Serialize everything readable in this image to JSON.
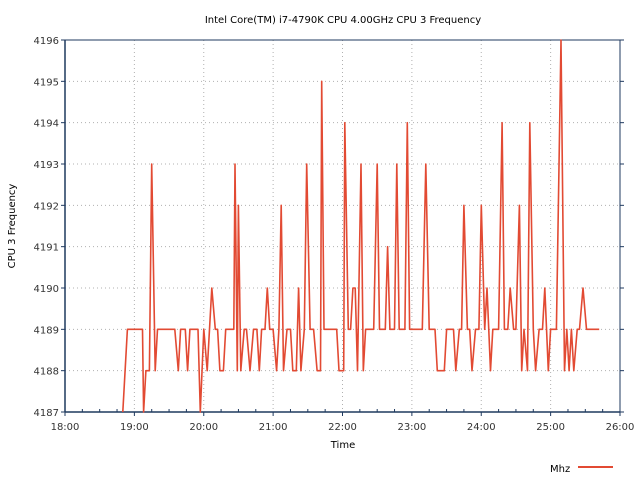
{
  "chart_data": {
    "type": "line",
    "title": "Intel Core(TM) i7-4790K CPU 4.00GHz CPU 3 Frequency",
    "xlabel": "Time",
    "ylabel": "CPU 3 Frequency",
    "xlim": [
      "18:00",
      "26:00"
    ],
    "ylim": [
      4187,
      4196
    ],
    "x_ticks": [
      "18:00",
      "19:00",
      "20:00",
      "21:00",
      "22:00",
      "23:00",
      "24:00",
      "25:00",
      "26:00"
    ],
    "y_ticks": [
      "4187",
      "4188",
      "4189",
      "4190",
      "4191",
      "4192",
      "4193",
      "4194",
      "4195",
      "4196"
    ],
    "grid": true,
    "legend_position": "bottom-right",
    "colors": {
      "series": "#e24a33",
      "axis": "#1f3a5f",
      "grid": "#b0b0b0"
    },
    "series": [
      {
        "name": "Mhz",
        "points": [
          [
            "18:50",
            4187
          ],
          [
            "18:54",
            4189
          ],
          [
            "19:05",
            4189
          ],
          [
            "19:07",
            4189
          ],
          [
            "19:08",
            4187
          ],
          [
            "19:10",
            4188
          ],
          [
            "19:13",
            4188
          ],
          [
            "19:15",
            4193
          ],
          [
            "19:18",
            4188
          ],
          [
            "19:20",
            4189
          ],
          [
            "19:35",
            4189
          ],
          [
            "19:38",
            4188
          ],
          [
            "19:40",
            4189
          ],
          [
            "19:44",
            4189
          ],
          [
            "19:46",
            4188
          ],
          [
            "19:48",
            4189
          ],
          [
            "19:55",
            4189
          ],
          [
            "19:57",
            4187
          ],
          [
            "20:00",
            4189
          ],
          [
            "20:03",
            4188
          ],
          [
            "20:07",
            4190
          ],
          [
            "20:10",
            4189
          ],
          [
            "20:12",
            4189
          ],
          [
            "20:14",
            4188
          ],
          [
            "20:17",
            4188
          ],
          [
            "20:19",
            4189
          ],
          [
            "20:26",
            4189
          ],
          [
            "20:27",
            4193
          ],
          [
            "20:29",
            4188
          ],
          [
            "20:30",
            4192
          ],
          [
            "20:32",
            4188
          ],
          [
            "20:35",
            4189
          ],
          [
            "20:37",
            4189
          ],
          [
            "20:40",
            4188
          ],
          [
            "20:43",
            4189
          ],
          [
            "20:46",
            4189
          ],
          [
            "20:48",
            4188
          ],
          [
            "20:50",
            4189
          ],
          [
            "20:53",
            4189
          ],
          [
            "20:55",
            4190
          ],
          [
            "20:57",
            4189
          ],
          [
            "21:00",
            4189
          ],
          [
            "21:03",
            4188
          ],
          [
            "21:05",
            4189
          ],
          [
            "21:07",
            4192
          ],
          [
            "21:09",
            4188
          ],
          [
            "21:12",
            4189
          ],
          [
            "21:15",
            4189
          ],
          [
            "21:17",
            4188
          ],
          [
            "21:20",
            4188
          ],
          [
            "21:22",
            4190
          ],
          [
            "21:24",
            4188
          ],
          [
            "21:27",
            4189
          ],
          [
            "21:29",
            4193
          ],
          [
            "21:32",
            4189
          ],
          [
            "21:35",
            4189
          ],
          [
            "21:38",
            4188
          ],
          [
            "21:41",
            4188
          ],
          [
            "21:42",
            4195
          ],
          [
            "21:44",
            4189
          ],
          [
            "21:50",
            4189
          ],
          [
            "21:55",
            4189
          ],
          [
            "21:57",
            4188
          ],
          [
            "22:01",
            4188
          ],
          [
            "22:02",
            4194
          ],
          [
            "22:05",
            4189
          ],
          [
            "22:07",
            4189
          ],
          [
            "22:09",
            4190
          ],
          [
            "22:11",
            4190
          ],
          [
            "22:13",
            4188
          ],
          [
            "22:16",
            4193
          ],
          [
            "22:18",
            4188
          ],
          [
            "22:20",
            4189
          ],
          [
            "22:27",
            4189
          ],
          [
            "22:30",
            4193
          ],
          [
            "22:32",
            4189
          ],
          [
            "22:37",
            4189
          ],
          [
            "22:39",
            4191
          ],
          [
            "22:41",
            4189
          ],
          [
            "22:45",
            4189
          ],
          [
            "22:47",
            4193
          ],
          [
            "22:49",
            4189
          ],
          [
            "22:54",
            4189
          ],
          [
            "22:56",
            4194
          ],
          [
            "22:58",
            4189
          ],
          [
            "23:03",
            4189
          ],
          [
            "23:07",
            4189
          ],
          [
            "23:09",
            4189
          ],
          [
            "23:12",
            4193
          ],
          [
            "23:15",
            4189
          ],
          [
            "23:20",
            4189
          ],
          [
            "23:22",
            4188
          ],
          [
            "23:28",
            4188
          ],
          [
            "23:30",
            4189
          ],
          [
            "23:36",
            4189
          ],
          [
            "23:38",
            4188
          ],
          [
            "23:41",
            4189
          ],
          [
            "23:43",
            4189
          ],
          [
            "23:45",
            4192
          ],
          [
            "23:48",
            4189
          ],
          [
            "23:50",
            4189
          ],
          [
            "23:52",
            4188
          ],
          [
            "23:55",
            4189
          ],
          [
            "23:58",
            4189
          ],
          [
            "24:00",
            4192
          ],
          [
            "24:03",
            4189
          ],
          [
            "24:05",
            4190
          ],
          [
            "24:08",
            4188
          ],
          [
            "24:10",
            4189
          ],
          [
            "24:15",
            4189
          ],
          [
            "24:18",
            4194
          ],
          [
            "24:20",
            4189
          ],
          [
            "24:23",
            4189
          ],
          [
            "24:25",
            4190
          ],
          [
            "24:28",
            4189
          ],
          [
            "24:30",
            4189
          ],
          [
            "24:33",
            4192
          ],
          [
            "24:35",
            4188
          ],
          [
            "24:37",
            4189
          ],
          [
            "24:40",
            4188
          ],
          [
            "24:42",
            4194
          ],
          [
            "24:45",
            4189
          ],
          [
            "24:47",
            4188
          ],
          [
            "24:50",
            4189
          ],
          [
            "24:53",
            4189
          ],
          [
            "24:55",
            4190
          ],
          [
            "24:58",
            4188
          ],
          [
            "25:00",
            4189
          ],
          [
            "25:05",
            4189
          ],
          [
            "25:09",
            4196
          ],
          [
            "25:12",
            4188
          ],
          [
            "25:14",
            4189
          ],
          [
            "25:16",
            4188
          ],
          [
            "25:18",
            4189
          ],
          [
            "25:20",
            4188
          ],
          [
            "25:23",
            4189
          ],
          [
            "25:25",
            4189
          ],
          [
            "25:28",
            4190
          ],
          [
            "25:31",
            4189
          ],
          [
            "25:42",
            4189
          ]
        ]
      }
    ]
  }
}
